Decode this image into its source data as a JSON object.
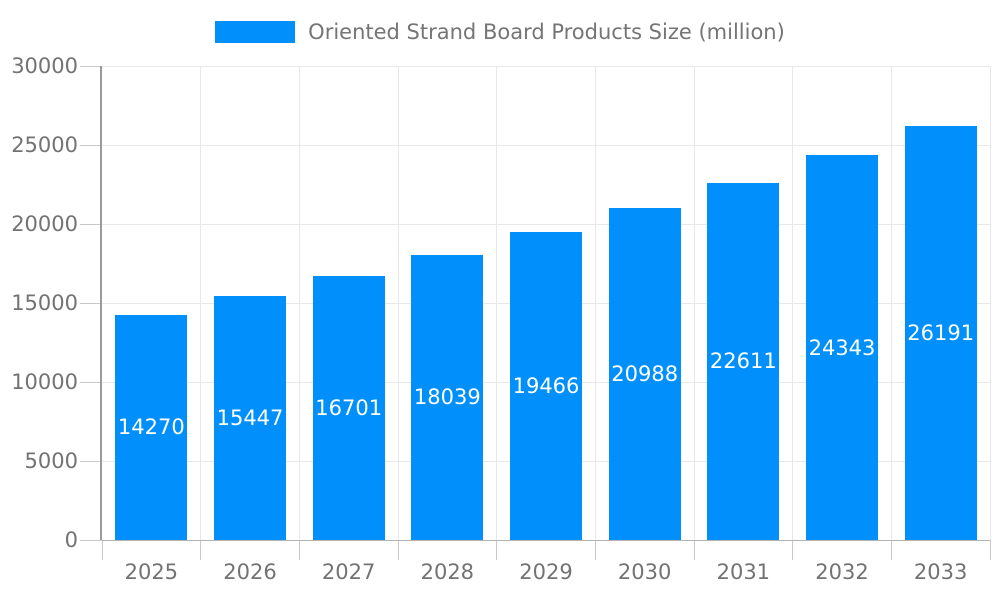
{
  "chart": {
    "colors": {
      "bar": "#008FFB",
      "grid": "#e8e8e8",
      "axis_line": "#9a9a9a",
      "x_axis_line": "#b3b3b3",
      "tick": "#c9c9c9",
      "axis_label": "#737373",
      "legend_text": "#757575",
      "value_label": "#ffffff"
    }
  },
  "chart_data": {
    "type": "bar",
    "title": "",
    "series_name": "Oriented Strand Board Products Size (million)",
    "categories": [
      "2025",
      "2026",
      "2027",
      "2028",
      "2029",
      "2030",
      "2031",
      "2032",
      "2033"
    ],
    "values": [
      14270,
      15447,
      16701,
      18039,
      19466,
      20988,
      22611,
      24343,
      26191
    ],
    "xlabel": "",
    "ylabel": "",
    "ylim": [
      0,
      30000
    ],
    "ytick_step": 5000,
    "yticks": [
      0,
      5000,
      10000,
      15000,
      20000,
      25000,
      30000
    ],
    "legend_position": "top-center",
    "grid": true,
    "value_label_position": "inside-center"
  }
}
